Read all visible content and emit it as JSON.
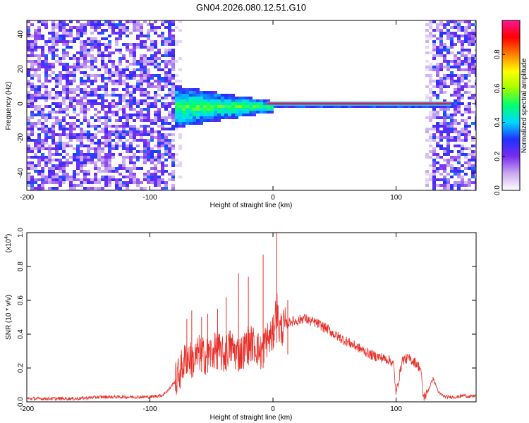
{
  "figure": {
    "title": "GN04.2026.080.12.51.G10"
  },
  "chart_data": [
    {
      "type": "heatmap",
      "xlabel": "Height of straight line (km)",
      "ylabel": "Frequency (Hz)",
      "xlim": [
        -200,
        165
      ],
      "ylim": [
        -50,
        48
      ],
      "x_ticks": [
        -200,
        -100,
        0,
        100
      ],
      "y_ticks": [
        -40,
        -20,
        0,
        20,
        40
      ],
      "grid": false,
      "colorbar": {
        "label": "Normalized spectral amplitude",
        "range": [
          0,
          1
        ],
        "ticks": [
          0.0,
          0.2,
          0.4,
          0.6,
          0.8
        ],
        "tick_labels": [
          "0.0",
          "0.2",
          "0.4",
          "0.6",
          "0.8"
        ],
        "colors": [
          "#ffffff",
          "#c9a8f0",
          "#7a2cf0",
          "#2030ff",
          "#00d8ff",
          "#00ff70",
          "#a0ff00",
          "#ffff00",
          "#ff8000",
          "#ff0000",
          "#ff1493"
        ]
      },
      "line_segment": {
        "x_start": -5,
        "x_end": 145,
        "frequency": 0,
        "amplitude": 0.95
      },
      "regions": [
        {
          "x_range": [
            -200,
            -80
          ],
          "freq_range": [
            -50,
            48
          ],
          "amplitude": 0.3,
          "description": "broadband noise"
        },
        {
          "x_range": [
            -80,
            -10
          ],
          "freq_range": [
            -12,
            10
          ],
          "amplitude": 0.45
        },
        {
          "x_range": [
            -10,
            145
          ],
          "freq_range": [
            -2,
            2
          ],
          "amplitude": 0.9
        },
        {
          "x_range": [
            122,
            165
          ],
          "freq_range": [
            -50,
            48
          ],
          "amplitude": 0.3
        }
      ]
    },
    {
      "type": "line",
      "xlabel": "Height of straight line (km)",
      "ylabel": "SNR (10 * v/v)",
      "y_multiplier": "(x10^4)",
      "y_multiplier_base": "(x10",
      "y_multiplier_exp": "4",
      "y_multiplier_close": ")",
      "xlim": [
        -200,
        165
      ],
      "ylim": [
        0,
        1.0
      ],
      "x_ticks": [
        -200,
        -100,
        0,
        100
      ],
      "y_ticks": [
        0.0,
        0.2,
        0.4,
        0.6,
        0.8,
        1.0
      ],
      "y_tick_labels": [
        "0.0",
        "0.2",
        "0.4",
        "0.6",
        "0.8",
        "1.0"
      ],
      "grid": false,
      "color": "#e8302a",
      "series": [
        {
          "x": [
            -200,
            -180,
            -160,
            -140,
            -120,
            -100,
            -90,
            -85,
            -80,
            -75,
            -70,
            -65,
            -60,
            -55,
            -50,
            -45,
            -40,
            -35,
            -30,
            -25,
            -20,
            -15,
            -10,
            -5,
            0,
            3,
            5,
            8,
            10,
            15,
            20,
            25,
            30,
            35,
            40,
            45,
            50,
            55,
            60,
            65,
            70,
            75,
            80,
            85,
            90,
            95,
            98,
            100,
            105,
            110,
            115,
            120,
            122,
            125,
            130,
            135,
            140,
            145,
            150,
            155,
            160,
            165
          ],
          "values": [
            0.02,
            0.02,
            0.02,
            0.03,
            0.03,
            0.03,
            0.04,
            0.07,
            0.12,
            0.2,
            0.28,
            0.25,
            0.3,
            0.28,
            0.3,
            0.32,
            0.28,
            0.34,
            0.3,
            0.3,
            0.36,
            0.35,
            0.3,
            0.38,
            0.4,
            0.58,
            0.44,
            0.45,
            0.46,
            0.48,
            0.48,
            0.5,
            0.48,
            0.47,
            0.45,
            0.43,
            0.4,
            0.38,
            0.36,
            0.34,
            0.32,
            0.3,
            0.28,
            0.27,
            0.26,
            0.25,
            0.22,
            0.05,
            0.25,
            0.26,
            0.24,
            0.2,
            0.03,
            0.05,
            0.14,
            0.05,
            0.03,
            0.03,
            0.03,
            0.04,
            0.03,
            0.04
          ]
        }
      ],
      "spikes": [
        {
          "x": 3,
          "value": 1.0
        },
        {
          "x": -8,
          "value": 0.87
        },
        {
          "x": -20,
          "value": 0.74
        },
        {
          "x": -28,
          "value": 0.76
        },
        {
          "x": -38,
          "value": 0.62
        },
        {
          "x": -45,
          "value": 0.55
        },
        {
          "x": -53,
          "value": 0.52
        },
        {
          "x": -58,
          "value": 0.5
        },
        {
          "x": -66,
          "value": 0.54
        },
        {
          "x": -70,
          "value": 0.49
        },
        {
          "x": 12,
          "value": 0.6
        }
      ]
    }
  ]
}
